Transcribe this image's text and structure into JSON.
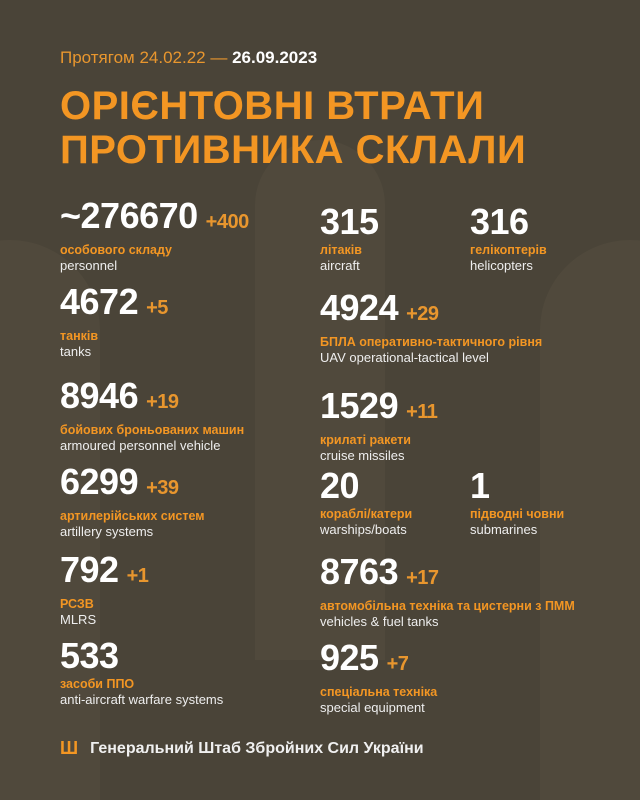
{
  "header": {
    "period_prefix": "Протягом 24.02.22 —",
    "period_end": "26.09.2023",
    "title_line1": "ОРІЄНТОВНІ ВТРАТИ",
    "title_line2": "ПРОТИВНИКА СКЛАЛИ"
  },
  "stats": [
    {
      "value": "~276670",
      "delta": "+400",
      "uk": "особового складу",
      "en": "personnel"
    },
    {
      "value": "4672",
      "delta": "+5",
      "uk": "танків",
      "en": "tanks"
    },
    {
      "value": "8946",
      "delta": "+19",
      "uk": "бойових броньованих машин",
      "en": "armoured personnel vehicle"
    },
    {
      "value": "6299",
      "delta": "+39",
      "uk": "артилерійських систем",
      "en": "artillery systems"
    },
    {
      "value": "792",
      "delta": "+1",
      "uk": "РСЗВ",
      "en": "MLRS"
    },
    {
      "value": "533",
      "delta": "",
      "uk": "засоби ППО",
      "en": "anti-aircraft warfare systems"
    },
    {
      "value": "315",
      "delta": "",
      "uk": "літаків",
      "en": "aircraft"
    },
    {
      "value": "316",
      "delta": "",
      "uk": "гелікоптерів",
      "en": "helicopters"
    },
    {
      "value": "4924",
      "delta": "+29",
      "uk": "БПЛА оперативно-тактичного рівня",
      "en": "UAV operational-tactical level"
    },
    {
      "value": "1529",
      "delta": "+11",
      "uk": "крилаті ракети",
      "en": "cruise missiles"
    },
    {
      "value": "20",
      "delta": "",
      "uk": "кораблі/катери",
      "en": "warships/boats"
    },
    {
      "value": "1",
      "delta": "",
      "uk": "підводні човни",
      "en": "submarines"
    },
    {
      "value": "8763",
      "delta": "+17",
      "uk": "автомобільна техніка та цистерни з ПММ",
      "en": "vehicles & fuel tanks"
    },
    {
      "value": "925",
      "delta": "+7",
      "uk": "спеціальна техніка",
      "en": "special equipment"
    }
  ],
  "footer": {
    "icon": "trident-icon",
    "text": "Генеральний Штаб Збройних Сил України"
  },
  "colors": {
    "background": "#4a4438",
    "accent": "#f39623",
    "text": "#ffffff"
  }
}
